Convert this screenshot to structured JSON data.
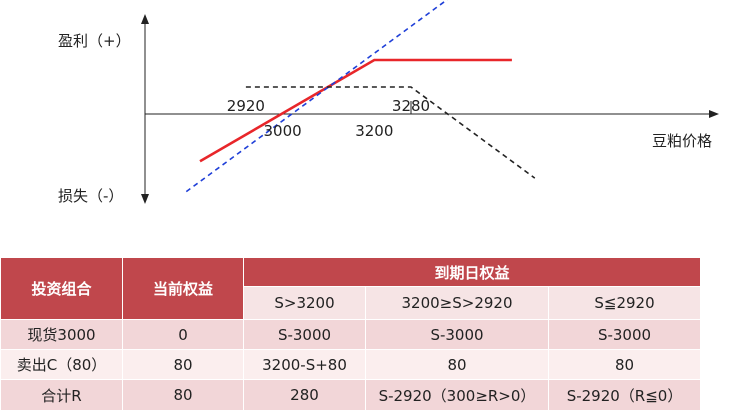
{
  "chart_data": {
    "type": "line",
    "title": "",
    "xlabel": "豆粕价格",
    "ylabel_top": "盈利（+）",
    "ylabel_bottom": "损失（-）",
    "xlim": [
      2700,
      3900
    ],
    "ylim": [
      -230,
      380
    ],
    "series": [
      {
        "name": "",
        "color": "#e8262a",
        "style": "solid",
        "x": [
          2820,
          3200,
          3500
        ],
        "y": [
          -140,
          160,
          160
        ]
      },
      {
        "name": "",
        "color": "#1f3fd8",
        "style": "dashed",
        "x": [
          2790,
          3380
        ],
        "y": [
          -230,
          360
        ]
      },
      {
        "name": "",
        "color": "#222222",
        "style": "dashed",
        "x": [
          2920,
          3280,
          3550
        ],
        "y": [
          80,
          80,
          -190
        ]
      }
    ],
    "tick_labels": [
      {
        "text": "2920",
        "x": 2920,
        "pos": "above"
      },
      {
        "text": "3000",
        "x": 3000,
        "pos": "below"
      },
      {
        "text": "3200",
        "x": 3200,
        "pos": "below"
      },
      {
        "text": "3280",
        "x": 3280,
        "pos": "above"
      }
    ]
  },
  "table": {
    "header": {
      "portfolio": "投资组合",
      "current": "当前权益",
      "expiry": "到期日权益",
      "cases": [
        "S>3200",
        "3200≥S>2920",
        "S≦2920"
      ]
    },
    "rows": [
      {
        "name": "现货3000",
        "current": "0",
        "c1": "S-3000",
        "c2": "S-3000",
        "c3": "S-3000"
      },
      {
        "name": "卖出C（80）",
        "current": "80",
        "c1": "3200-S+80",
        "c2": "80",
        "c3": "80"
      },
      {
        "name": "合计R",
        "current": "80",
        "c1": "280",
        "c2": "S-2920（300≥R>0）",
        "c3": "S-2920（R≦0）"
      }
    ],
    "colors": {
      "header": "#c0474c",
      "row_dark": "#f2d6d8",
      "row_light": "#fbeeee"
    }
  }
}
